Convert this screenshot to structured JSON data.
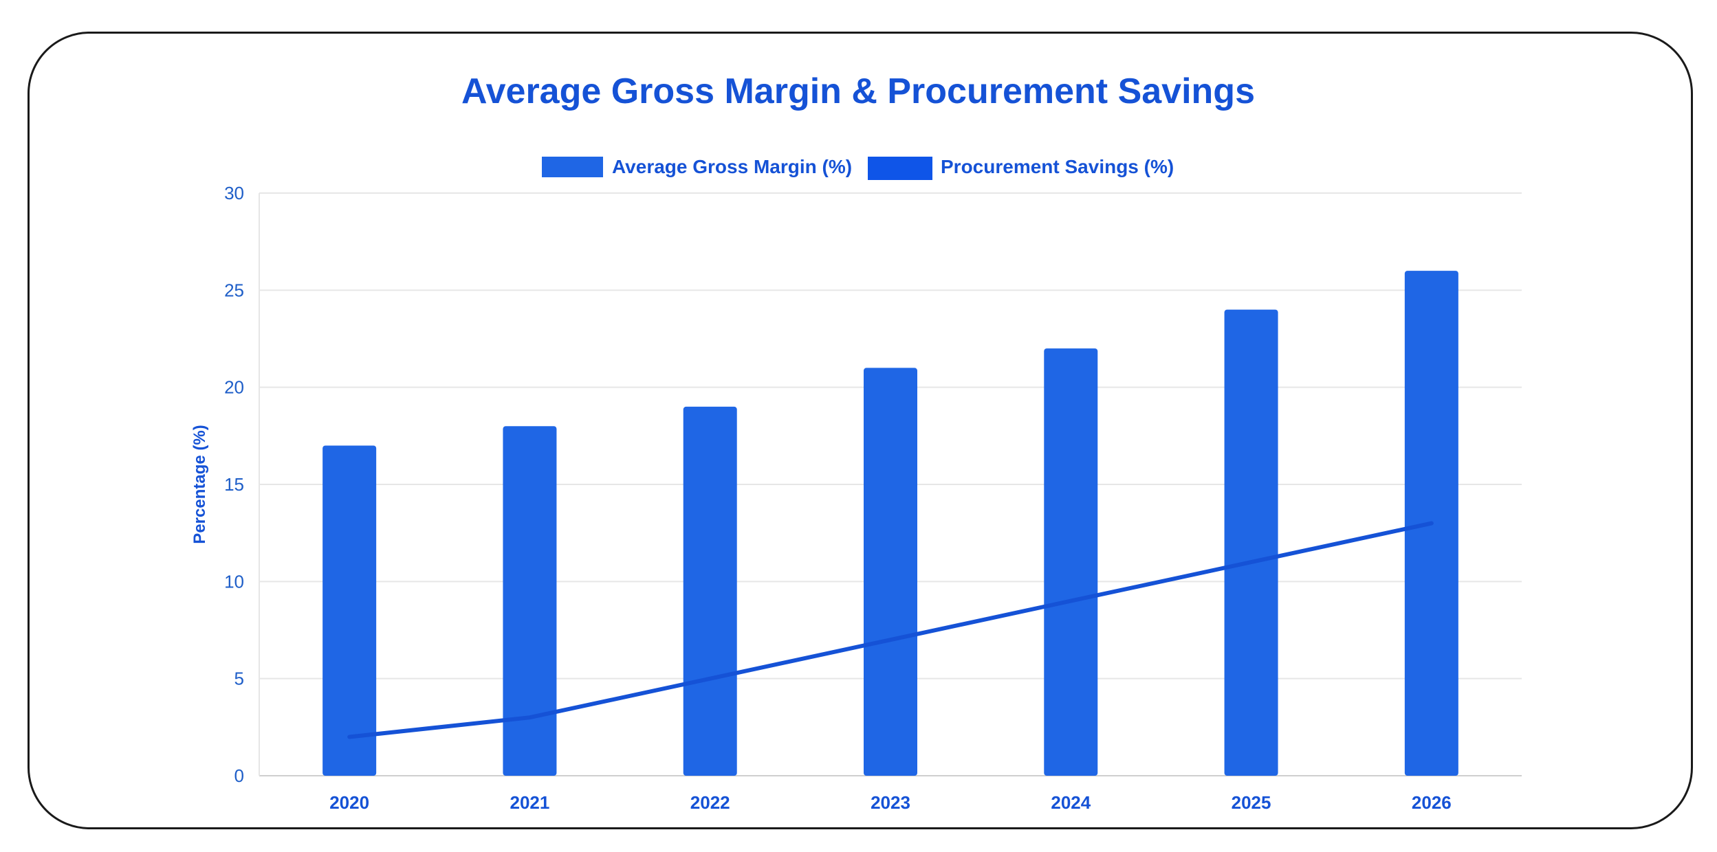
{
  "chart_data": {
    "type": "bar",
    "title": "Average Gross Margin & Procurement Savings",
    "xlabel": "",
    "ylabel": "Percentage (%)",
    "ylim": [
      0,
      30
    ],
    "yticks": [
      0,
      5,
      10,
      15,
      20,
      25,
      30
    ],
    "categories": [
      "2020",
      "2021",
      "2022",
      "2023",
      "2024",
      "2025",
      "2026"
    ],
    "series": [
      {
        "name": "Average Gross Margin (%)",
        "type": "bar",
        "color": "#1f66e5",
        "values": [
          17,
          18,
          19,
          21,
          22,
          24,
          26
        ]
      },
      {
        "name": "Procurement Savings (%)",
        "type": "line",
        "color": "#1552d6",
        "values": [
          2,
          3,
          5,
          7,
          9,
          11,
          13
        ]
      }
    ],
    "legend_position": "top",
    "grid": true
  }
}
